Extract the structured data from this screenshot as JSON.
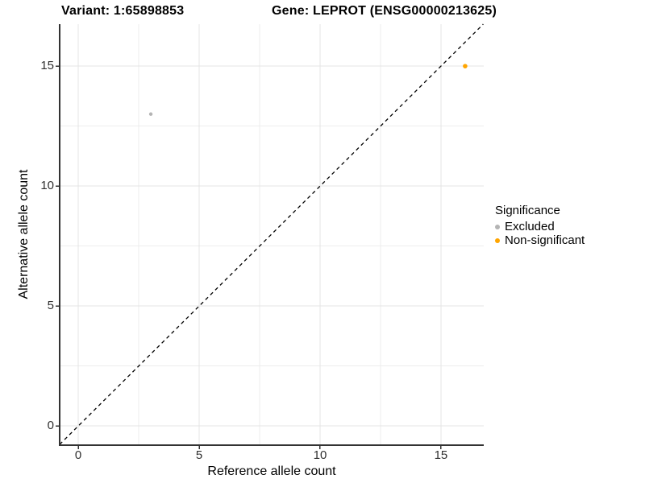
{
  "title": {
    "variant": "Variant: 1:65898853",
    "gene": "Gene: LEPROT (ENSG00000213625)"
  },
  "colors": {
    "background": "#ffffff",
    "grid_major": "#e4e4e4",
    "grid_minor": "#ededed",
    "axis_line": "#333333",
    "tick_mark": "#333333",
    "tick_label": "#303030",
    "identity_line": "#000000",
    "excluded": "#b4b4b4",
    "non_significant": "#ffa500"
  },
  "chart_data": {
    "type": "scatter",
    "title": "Variant: 1:65898853    Gene: LEPROT (ENSG00000213625)",
    "xlabel": "Reference allele count",
    "ylabel": "Alternative allele count",
    "xlim": [
      -0.77,
      16.77
    ],
    "ylim": [
      -0.8,
      16.75
    ],
    "xticks": [
      0,
      5,
      10,
      15
    ],
    "yticks": [
      0,
      5,
      10,
      15
    ],
    "xticks_minor": [
      2.5,
      7.5,
      12.5
    ],
    "yticks_minor": [
      2.5,
      7.5,
      12.5
    ],
    "grid": true,
    "reference_line": {
      "kind": "identity y=x",
      "style": "dashed",
      "color": "#000000"
    },
    "legend": {
      "title": "Significance",
      "position": "right"
    },
    "series": [
      {
        "name": "Excluded",
        "color": "#b4b4b4",
        "marker_radius": 2.2,
        "points": [
          {
            "x": 3,
            "y": 13
          }
        ]
      },
      {
        "name": "Non-significant",
        "color": "#ffa500",
        "marker_radius": 2.8,
        "points": [
          {
            "x": 16,
            "y": 15
          }
        ]
      }
    ]
  }
}
